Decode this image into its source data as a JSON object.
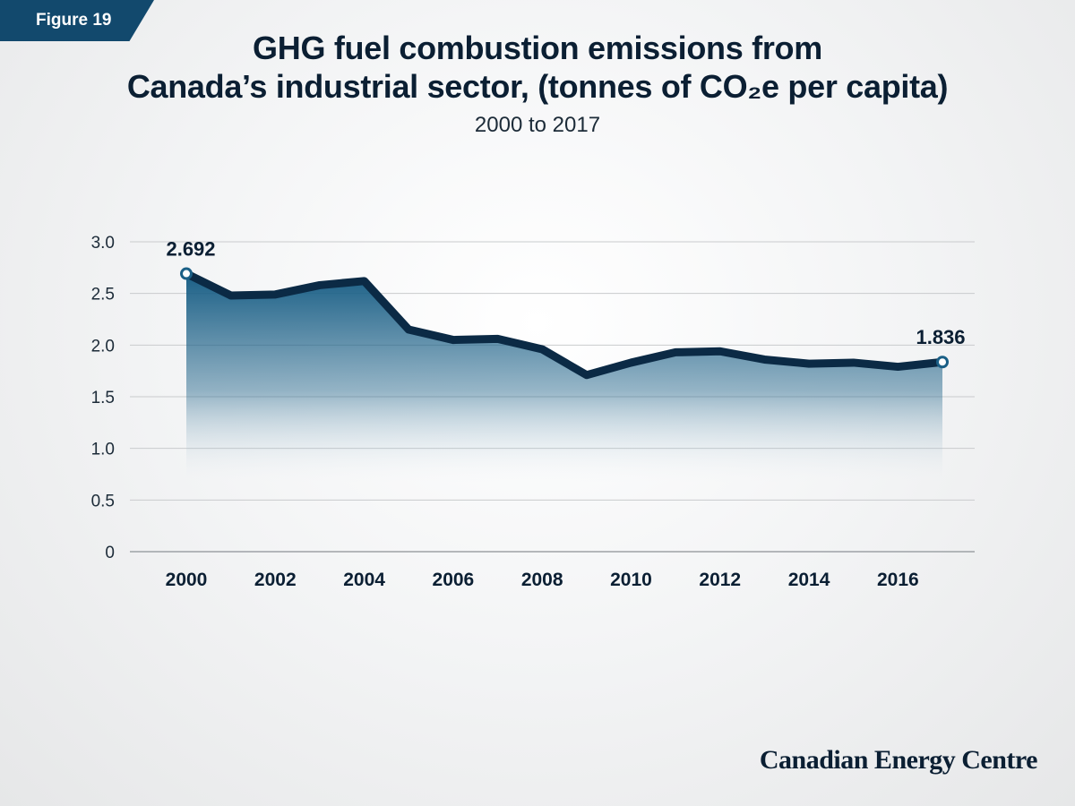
{
  "badge": "Figure 19",
  "title_line1": "GHG fuel combustion emissions from",
  "title_line2": "Canada’s industrial sector, (tonnes of CO₂e per capita)",
  "subtitle": "2000 to 2017",
  "brand": "Canadian Energy Centre",
  "colors": {
    "line": "#0b2a45",
    "area_top": "#1a5f86",
    "area_bottom": "#ffffff",
    "grid": "#c9cbcd",
    "axis": "#9ea2a6",
    "badge": "#12496d"
  },
  "chart_data": {
    "type": "area",
    "x": [
      2000,
      2001,
      2002,
      2003,
      2004,
      2005,
      2006,
      2007,
      2008,
      2009,
      2010,
      2011,
      2012,
      2013,
      2014,
      2015,
      2016,
      2017
    ],
    "values": [
      2.692,
      2.48,
      2.49,
      2.58,
      2.62,
      2.15,
      2.05,
      2.06,
      1.96,
      1.71,
      1.83,
      1.93,
      1.94,
      1.86,
      1.82,
      1.83,
      1.79,
      1.836
    ],
    "xticks": [
      "2000",
      "2002",
      "2004",
      "2006",
      "2008",
      "2010",
      "2012",
      "2014",
      "2016"
    ],
    "yticks": [
      "0",
      "0.5",
      "1.0",
      "1.5",
      "2.0",
      "2.5",
      "3.0"
    ],
    "ylim": [
      0,
      3.0
    ],
    "grid": true,
    "annotations": [
      {
        "x": 2000,
        "label": "2.692"
      },
      {
        "x": 2017,
        "label": "1.836"
      }
    ]
  }
}
